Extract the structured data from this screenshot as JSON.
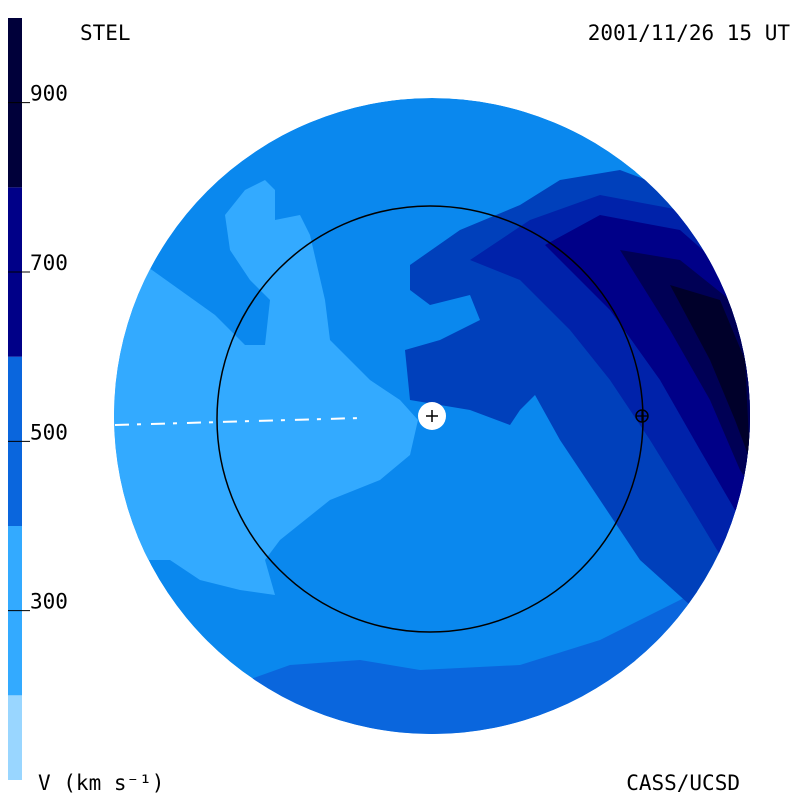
{
  "header": {
    "left": "STEL",
    "right": "2001/11/26 15 UT"
  },
  "footer": {
    "left": "V (km s⁻¹)",
    "right": "CASS/UCSD"
  },
  "colorbar": {
    "lim": [
      100,
      1000
    ],
    "ticks": [
      300,
      500,
      700,
      900
    ],
    "bounds": [
      100,
      200,
      400,
      600,
      800,
      1000
    ],
    "colors": [
      "#99d6ff",
      "#33aaff",
      "#0a66dd",
      "#000088",
      "#00003a"
    ]
  }
}
